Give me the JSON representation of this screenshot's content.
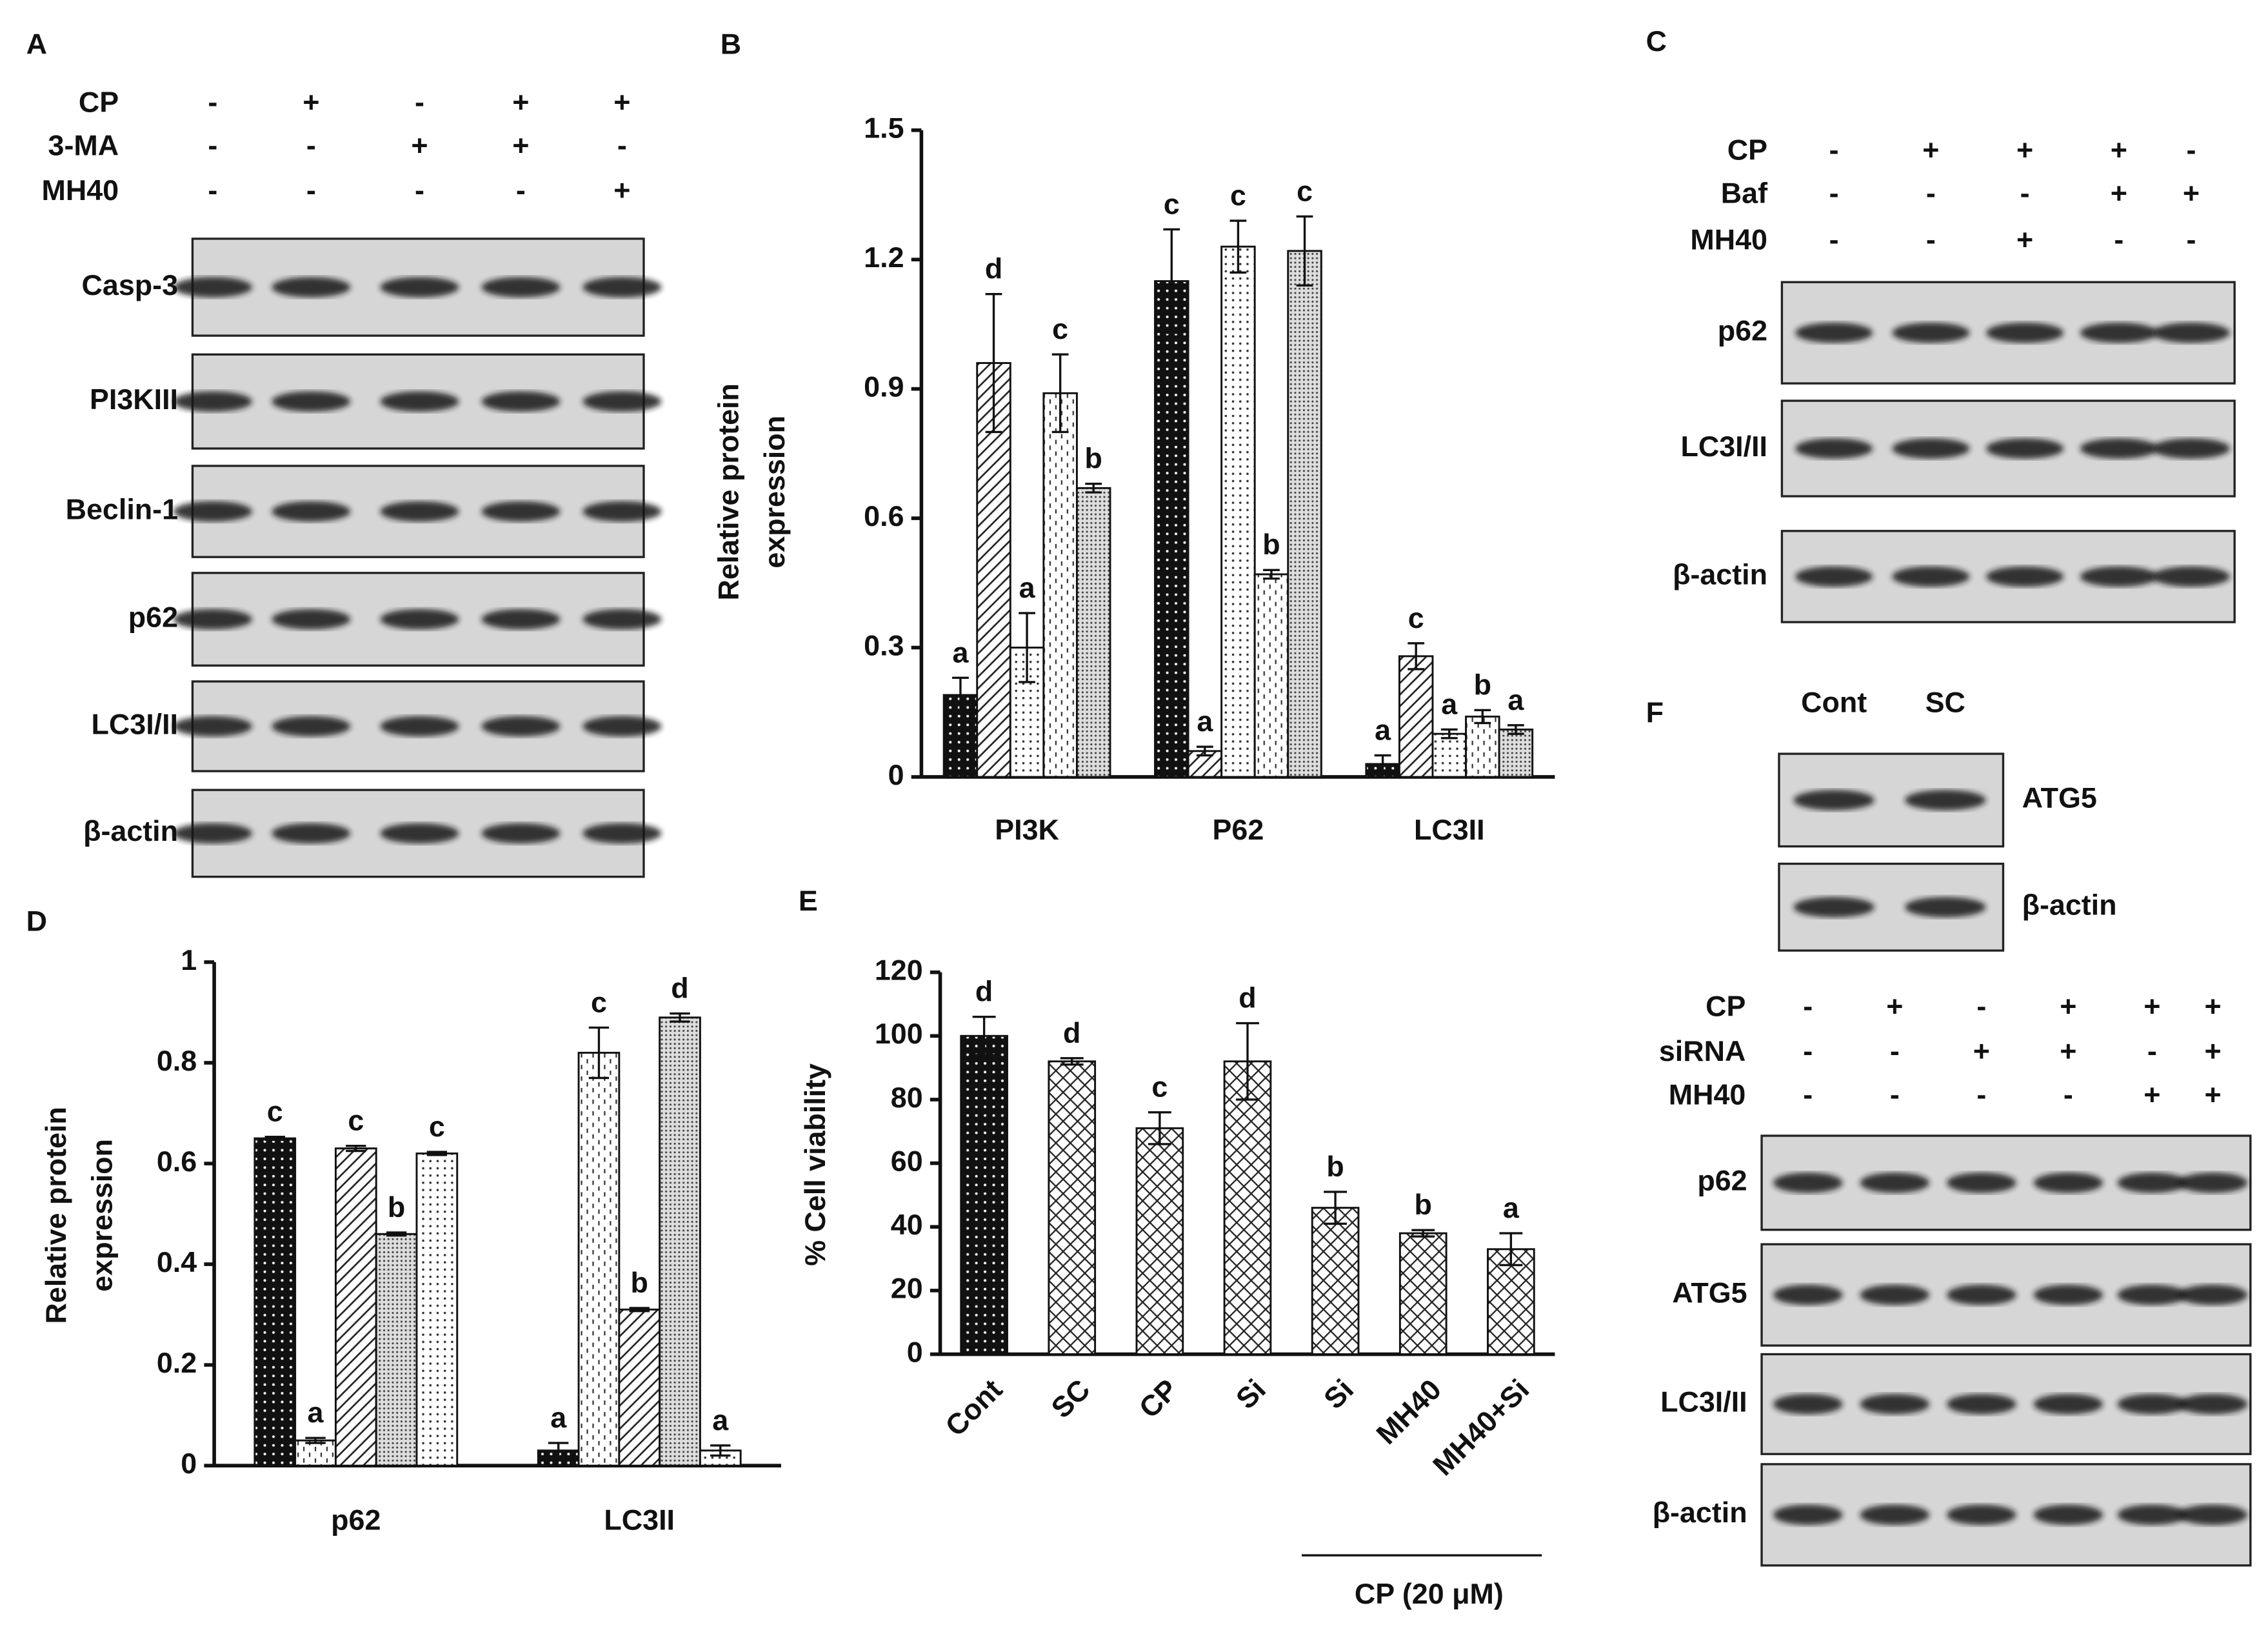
{
  "panel_letters": [
    "A",
    "B",
    "C",
    "D",
    "E",
    "F"
  ],
  "chart_data": [
    {
      "type": "bar",
      "ylabel": [
        "Relative protein",
        "expression"
      ],
      "categories": [
        "PI3K",
        "P62",
        "LC3II"
      ],
      "ylim": [
        0,
        1.5
      ],
      "yticks": [
        0,
        0.3,
        0.6,
        0.9,
        1.2,
        1.5
      ],
      "grid": false,
      "series": [
        {
          "pattern": "dark-dots",
          "values": [
            0.19,
            1.15,
            0.03
          ],
          "errors": [
            0.04,
            0.12,
            0.02
          ],
          "labels": [
            "a",
            "c",
            "a"
          ]
        },
        {
          "pattern": "diagonal",
          "values": [
            0.96,
            0.06,
            0.28
          ],
          "errors": [
            0.16,
            0.01,
            0.03
          ],
          "labels": [
            "d",
            "a",
            "c"
          ]
        },
        {
          "pattern": "light-dots",
          "values": [
            0.3,
            1.23,
            0.1
          ],
          "errors": [
            0.08,
            0.06,
            0.01
          ],
          "labels": [
            "a",
            "c",
            "a"
          ]
        },
        {
          "pattern": "dashes",
          "values": [
            0.89,
            0.47,
            0.14
          ],
          "errors": [
            0.09,
            0.01,
            0.015
          ],
          "labels": [
            "c",
            "b",
            "b"
          ]
        },
        {
          "pattern": "dense-dots",
          "values": [
            0.67,
            1.22,
            0.11
          ],
          "errors": [
            0.01,
            0.08,
            0.01
          ],
          "labels": [
            "b",
            "c",
            "a"
          ]
        }
      ]
    },
    {
      "type": "bar",
      "ylabel": [
        "Relative protein",
        "expression"
      ],
      "categories": [
        "p62",
        "LC3II"
      ],
      "ylim": [
        0,
        1
      ],
      "yticks": [
        0,
        0.2,
        0.4,
        0.6,
        0.8,
        1
      ],
      "grid": false,
      "series": [
        {
          "pattern": "dark-dots",
          "values": [
            0.65,
            0.03
          ],
          "errors": [
            0.003,
            0.015
          ],
          "labels": [
            "c",
            "a"
          ]
        },
        {
          "pattern": "dashes",
          "values": [
            0.05,
            0.82
          ],
          "errors": [
            0.005,
            0.05
          ],
          "labels": [
            "a",
            "c"
          ]
        },
        {
          "pattern": "diagonal",
          "values": [
            0.63,
            0.31
          ],
          "errors": [
            0.005,
            0.003
          ],
          "labels": [
            "c",
            "b"
          ]
        },
        {
          "pattern": "dense-dots",
          "values": [
            0.46,
            0.89
          ],
          "errors": [
            0.003,
            0.008
          ],
          "labels": [
            "b",
            "d"
          ]
        },
        {
          "pattern": "light-dots",
          "values": [
            0.62,
            0.03
          ],
          "errors": [
            0.003,
            0.01
          ],
          "labels": [
            "c",
            "a"
          ]
        }
      ]
    },
    {
      "type": "bar",
      "ylabel": "% Cell viability",
      "categories": [
        "Cont",
        "SC",
        "CP",
        "Si",
        "Si",
        "MH40",
        "MH40+Si"
      ],
      "group_label": "CP (20 μM)",
      "ylim": [
        0,
        120
      ],
      "yticks": [
        0,
        20,
        40,
        60,
        80,
        100,
        120
      ],
      "grid": false,
      "series": [
        {
          "patterns": [
            "dark-dots",
            "crosshatch",
            "crosshatch",
            "crosshatch",
            "crosshatch",
            "crosshatch",
            "crosshatch"
          ],
          "values": [
            100,
            92,
            71,
            92,
            46,
            38,
            33
          ],
          "errors": [
            6,
            1,
            5,
            12,
            5,
            1,
            5
          ],
          "labels": [
            "d",
            "d",
            "c",
            "d",
            "b",
            "b",
            "a"
          ]
        }
      ]
    }
  ],
  "blots": [
    {
      "conditions": [
        {
          "name": "CP",
          "signs": [
            "-",
            "+",
            "-",
            "+",
            "+"
          ]
        },
        {
          "name": "3-MA",
          "signs": [
            "-",
            "-",
            "+",
            "+",
            "-"
          ]
        },
        {
          "name": "MH40",
          "signs": [
            "-",
            "-",
            "-",
            "-",
            "+"
          ]
        }
      ],
      "bands": [
        "Casp-3",
        "PI3KIII",
        "Beclin-1",
        "p62",
        "LC3I/II",
        "β-actin"
      ]
    },
    {
      "conditions": [
        {
          "name": "CP",
          "signs": [
            "-",
            "+",
            "+",
            "+",
            "-"
          ]
        },
        {
          "name": "Baf",
          "signs": [
            "-",
            "-",
            "-",
            "+",
            "+"
          ]
        },
        {
          "name": "MH40",
          "signs": [
            "-",
            "-",
            "+",
            "-",
            "-"
          ]
        }
      ],
      "bands": [
        "p62",
        "LC3I/II",
        "β-actin"
      ]
    },
    {
      "lanes": [
        "Cont",
        "SC"
      ],
      "bands": [
        "ATG5",
        "β-actin"
      ]
    },
    {
      "conditions": [
        {
          "name": "CP",
          "signs": [
            "-",
            "+",
            "-",
            "+",
            "+",
            "+"
          ]
        },
        {
          "name": "siRNA",
          "signs": [
            "-",
            "-",
            "+",
            "+",
            "-",
            "+"
          ]
        },
        {
          "name": "MH40",
          "signs": [
            "-",
            "-",
            "-",
            "-",
            "+",
            "+"
          ]
        }
      ],
      "bands": [
        "p62",
        "ATG5",
        "LC3I/II",
        "β-actin"
      ]
    }
  ]
}
